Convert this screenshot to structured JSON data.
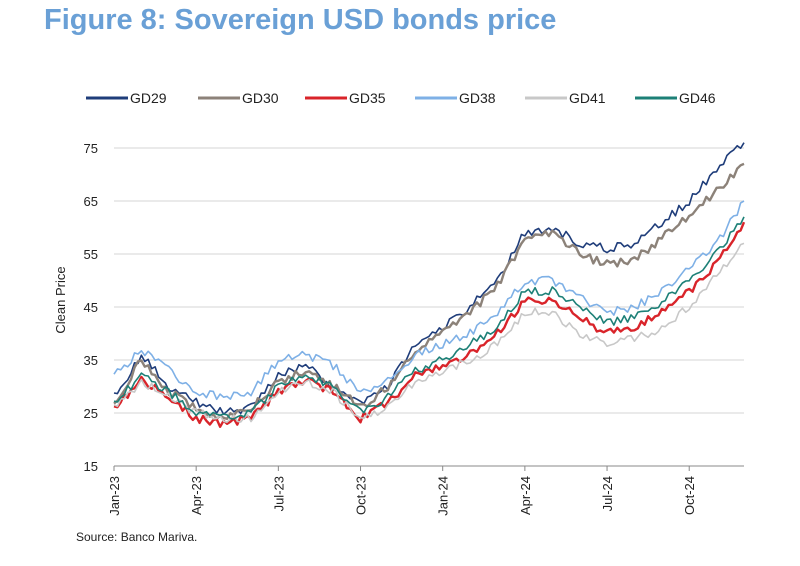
{
  "header": {
    "title": "Figure 8: Sovereign USD bonds price"
  },
  "footer": {
    "source": "Source: Banco Mariva."
  },
  "chart_data": {
    "type": "line",
    "title": "Figure 8: Sovereign USD bonds price",
    "xlabel": "",
    "ylabel": "Clean Price",
    "ylim": [
      15,
      80
    ],
    "y_ticks": [
      15,
      25,
      35,
      45,
      55,
      65,
      75
    ],
    "x_ticks": [
      "Jan-23",
      "Apr-23",
      "Jul-23",
      "Oct-23",
      "Jan-24",
      "Apr-24",
      "Jul-24",
      "Oct-24"
    ],
    "grid": true,
    "legend_position": "top",
    "x": [
      "Jan-23",
      "Feb-23",
      "Mar-23",
      "Apr-23",
      "May-23",
      "Jun-23",
      "Jul-23",
      "Aug-23",
      "Sep-23",
      "Oct-23",
      "Nov-23",
      "Dec-23",
      "Jan-24",
      "Feb-24",
      "Mar-24",
      "Apr-24",
      "May-24",
      "Jun-24",
      "Jul-24",
      "Aug-24",
      "Sep-24",
      "Oct-24",
      "Nov-24",
      "Dec-24"
    ],
    "series": [
      {
        "name": "GD29",
        "color": "#1f3d7a",
        "values": [
          28,
          36,
          30,
          27,
          25,
          26,
          32,
          34,
          30,
          27,
          30,
          38,
          41,
          45,
          50,
          59,
          60,
          57,
          56,
          57,
          61,
          65,
          71,
          76
        ]
      },
      {
        "name": "GD30",
        "color": "#8c8279",
        "values": [
          27,
          35,
          29,
          26,
          24,
          26,
          31,
          33,
          30,
          26,
          30,
          37,
          40,
          44,
          49,
          58,
          59,
          55,
          53,
          54,
          58,
          62,
          67,
          72
        ]
      },
      {
        "name": "GD35",
        "color": "#d9242a",
        "values": [
          26,
          31,
          28,
          24,
          23,
          24,
          29,
          31,
          29,
          24,
          27,
          32,
          34,
          36,
          40,
          46,
          46,
          43,
          40,
          41,
          44,
          48,
          53,
          61
        ]
      },
      {
        "name": "GD38",
        "color": "#7eb0e6",
        "values": [
          32,
          37,
          33,
          29,
          28,
          29,
          35,
          36,
          34,
          29,
          31,
          36,
          38,
          40,
          44,
          50,
          50,
          47,
          44,
          45,
          48,
          52,
          57,
          65
        ]
      },
      {
        "name": "GD41",
        "color": "#c8c8c8",
        "values": [
          26,
          31,
          28,
          25,
          24,
          24,
          29,
          31,
          29,
          24,
          26,
          31,
          33,
          35,
          38,
          44,
          44,
          40,
          38,
          39,
          41,
          45,
          51,
          57
        ]
      },
      {
        "name": "GD46",
        "color": "#1d8077",
        "values": [
          27,
          32,
          29,
          25,
          24,
          25,
          30,
          32,
          30,
          25,
          28,
          33,
          35,
          38,
          41,
          48,
          48,
          45,
          42,
          43,
          46,
          50,
          55,
          62
        ]
      }
    ]
  }
}
